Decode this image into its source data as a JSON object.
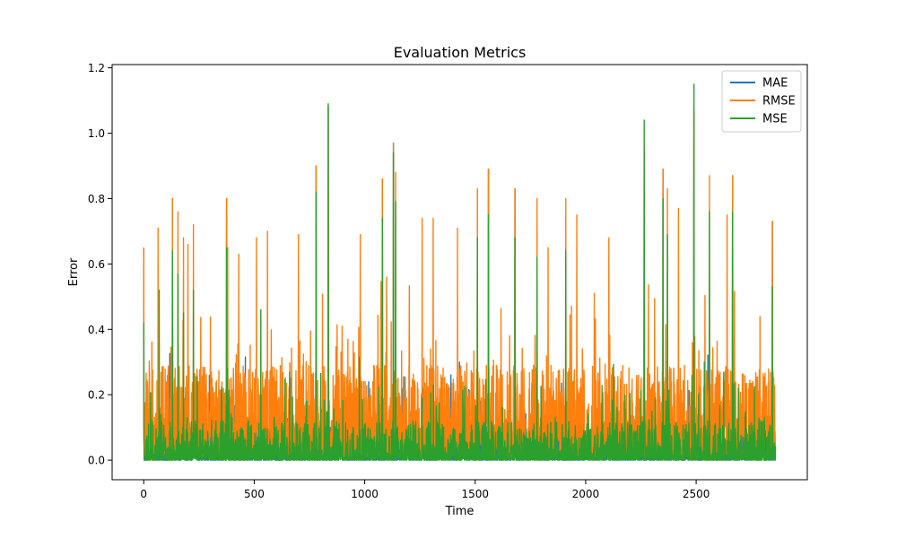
{
  "chart_data": {
    "type": "line",
    "title": "Evaluation Metrics",
    "xlabel": "Time",
    "ylabel": "Error",
    "xlim": [
      -143,
      3003
    ],
    "ylim": [
      -0.06,
      1.21
    ],
    "xticks": [
      0,
      500,
      1000,
      1500,
      2000,
      2500
    ],
    "yticks": [
      0.0,
      0.2,
      0.4,
      0.6,
      0.8,
      1.0,
      1.2
    ],
    "ytick_labels": [
      "0.0",
      "0.2",
      "0.4",
      "0.6",
      "0.8",
      "1.0",
      "1.2"
    ],
    "grid": false,
    "legend_position": "top-right",
    "n_points": 2860,
    "series": [
      {
        "name": "MAE",
        "color": "#1f77b4",
        "visibility": "hidden beneath RMSE and MSE lines",
        "peaks": [
          [
            0,
            0.65
          ],
          [
            130,
            0.8
          ],
          [
            375,
            0.8
          ],
          [
            780,
            0.9
          ],
          [
            835,
            1.08
          ],
          [
            1080,
            0.86
          ],
          [
            1130,
            0.97
          ],
          [
            1560,
            0.89
          ],
          [
            1680,
            0.83
          ],
          [
            2265,
            0.95
          ],
          [
            2350,
            0.89
          ],
          [
            2490,
            1.07
          ],
          [
            2665,
            0.87
          ],
          [
            2845,
            0.73
          ]
        ]
      },
      {
        "name": "RMSE",
        "color": "#ff7f0e",
        "peaks": [
          [
            0,
            0.65
          ],
          [
            65,
            0.71
          ],
          [
            130,
            0.8
          ],
          [
            155,
            0.76
          ],
          [
            180,
            0.68
          ],
          [
            200,
            0.66
          ],
          [
            225,
            0.72
          ],
          [
            375,
            0.8
          ],
          [
            380,
            0.65
          ],
          [
            430,
            0.63
          ],
          [
            510,
            0.68
          ],
          [
            560,
            0.7
          ],
          [
            700,
            0.69
          ],
          [
            780,
            0.9
          ],
          [
            835,
            1.08
          ],
          [
            980,
            0.69
          ],
          [
            1080,
            0.86
          ],
          [
            1130,
            0.97
          ],
          [
            1140,
            0.88
          ],
          [
            1260,
            0.74
          ],
          [
            1310,
            0.74
          ],
          [
            1420,
            0.71
          ],
          [
            1510,
            0.83
          ],
          [
            1560,
            0.89
          ],
          [
            1680,
            0.83
          ],
          [
            1780,
            0.8
          ],
          [
            1830,
            0.65
          ],
          [
            1910,
            0.8
          ],
          [
            1960,
            0.75
          ],
          [
            2105,
            0.68
          ],
          [
            2265,
            0.95
          ],
          [
            2350,
            0.89
          ],
          [
            2370,
            0.83
          ],
          [
            2420,
            0.77
          ],
          [
            2490,
            1.07
          ],
          [
            2560,
            0.87
          ],
          [
            2640,
            0.75
          ],
          [
            2665,
            0.87
          ],
          [
            2845,
            0.73
          ]
        ]
      },
      {
        "name": "MSE",
        "color": "#2ca02c",
        "peaks": [
          [
            0,
            0.42
          ],
          [
            70,
            0.52
          ],
          [
            130,
            0.64
          ],
          [
            155,
            0.57
          ],
          [
            180,
            0.45
          ],
          [
            225,
            0.52
          ],
          [
            375,
            0.65
          ],
          [
            530,
            0.46
          ],
          [
            780,
            0.82
          ],
          [
            835,
            1.09
          ],
          [
            1080,
            0.74
          ],
          [
            1130,
            0.94
          ],
          [
            1140,
            0.79
          ],
          [
            1510,
            0.68
          ],
          [
            1560,
            0.75
          ],
          [
            1680,
            0.68
          ],
          [
            1780,
            0.62
          ],
          [
            1910,
            0.64
          ],
          [
            2265,
            1.04
          ],
          [
            2350,
            0.8
          ],
          [
            2370,
            0.69
          ],
          [
            2490,
            1.15
          ],
          [
            2560,
            0.76
          ],
          [
            2665,
            0.76
          ],
          [
            2845,
            0.53
          ]
        ]
      }
    ]
  }
}
